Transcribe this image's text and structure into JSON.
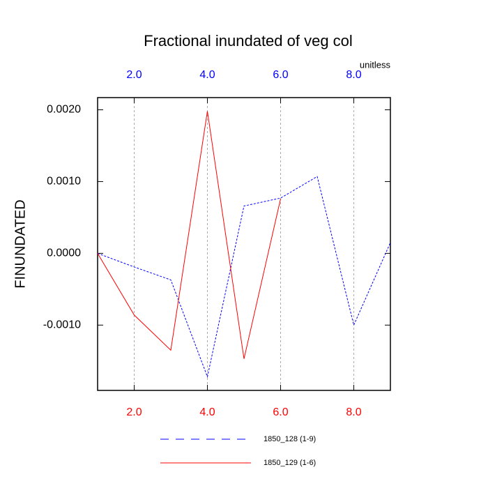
{
  "chart_data": {
    "type": "line",
    "title": "Fractional inundated of veg col",
    "y_label": "FINUNDATED",
    "x_units_label": "unitless",
    "xlim": [
      1,
      9
    ],
    "xticks": [
      {
        "value": 2,
        "label": "2.0"
      },
      {
        "value": 4,
        "label": "4.0"
      },
      {
        "value": 6,
        "label": "6.0"
      },
      {
        "value": 8,
        "label": "8.0"
      }
    ],
    "ylim": [
      -0.00191,
      0.00217
    ],
    "yticks": [
      {
        "value": -0.001,
        "label": "-0.0010"
      },
      {
        "value": 0,
        "label": "0.0000"
      },
      {
        "value": 0.001,
        "label": "0.0010"
      },
      {
        "value": 0.002,
        "label": "0.0020"
      }
    ],
    "grid": "x",
    "top_axis_color": "#0000ff",
    "bottom_axis_color": "#ff0000",
    "series": [
      {
        "name": "1850_128 (1-9)",
        "color": "#0000ff",
        "dash": true,
        "x": [
          1,
          2,
          3,
          4,
          5,
          6,
          7,
          8,
          9
        ],
        "values": [
          0,
          -0.00019,
          -0.00037,
          -0.00172,
          0.00066,
          0.00077,
          0.00107,
          -0.001,
          0.00015
        ]
      },
      {
        "name": "1850_129 (1-6)",
        "color": "#ff0000",
        "dash": false,
        "x": [
          1,
          2,
          3,
          4,
          5,
          6
        ],
        "values": [
          0,
          -0.00086,
          -0.00135,
          0.00198,
          -0.00147,
          0.00076
        ]
      }
    ]
  }
}
